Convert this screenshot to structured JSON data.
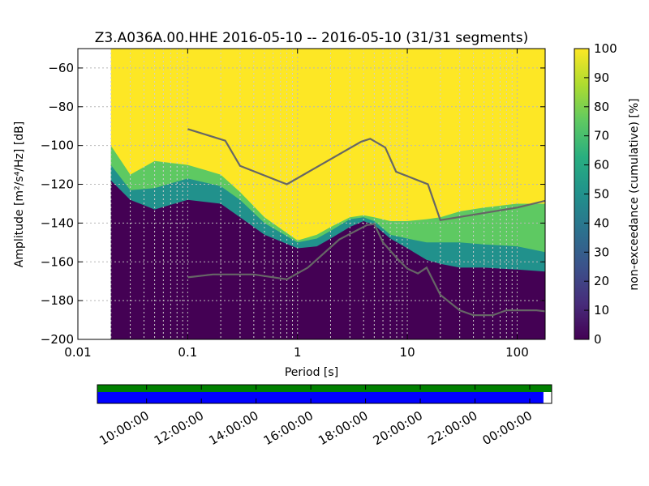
{
  "chart_data": [
    {
      "type": "heatmap",
      "title": "Z3.A036A.00.HHE   2016-05-10 -- 2016-05-10  (31/31 segments)",
      "xlabel": "Period [s]",
      "ylabel": "Amplitude [m²/s⁴/Hz] [dB]",
      "x_scale": "log",
      "xlim": [
        0.01,
        180
      ],
      "ylim": [
        -200,
        -50
      ],
      "grid": true,
      "x_ticks": [
        0.01,
        0.1,
        1,
        10,
        100
      ],
      "x_tick_labels": [
        "0.01",
        "0.1",
        "1",
        "10",
        "100"
      ],
      "y_ticks": [
        -60,
        -80,
        -100,
        -120,
        -140,
        -160,
        -180,
        -200
      ],
      "y_tick_labels": [
        "−60",
        "−80",
        "−100",
        "−120",
        "−140",
        "−160",
        "−180",
        "−200"
      ],
      "data_start_period": 0.02,
      "colorbar": {
        "label": "non-exceedance (cumulative) [%]",
        "range": [
          0,
          100
        ],
        "ticks": [
          0,
          10,
          20,
          30,
          40,
          50,
          60,
          70,
          80,
          90,
          100
        ],
        "tick_labels": [
          "0",
          "10",
          "20",
          "30",
          "40",
          "50",
          "60",
          "70",
          "80",
          "90",
          "100"
        ],
        "colors": [
          "#440154",
          "#472d7b",
          "#3b528b",
          "#2c728e",
          "#21918c",
          "#28ae80",
          "#5ec962",
          "#addc30",
          "#fde725"
        ]
      },
      "cumulative_bands": {
        "period": [
          0.02,
          0.03,
          0.05,
          0.1,
          0.2,
          0.3,
          0.5,
          1,
          1.5,
          2,
          3,
          4,
          5,
          7,
          10,
          15,
          20,
          30,
          50,
          100,
          180
        ],
        "pct_10": [
          -118,
          -128,
          -133,
          -128,
          -130,
          -137,
          -146,
          -153,
          -152,
          -148,
          -142,
          -139,
          -141,
          -148,
          -153,
          -159,
          -161,
          -163,
          -163,
          -164,
          -165
        ],
        "pct_50": [
          -110,
          -123,
          -122,
          -117,
          -121,
          -128,
          -140,
          -150,
          -148,
          -144,
          -138,
          -137,
          -139,
          -146,
          -148,
          -150,
          -150,
          -150,
          -151,
          -152,
          -155
        ],
        "pct_90": [
          -100,
          -115,
          -108,
          -110,
          -115,
          -124,
          -137,
          -149,
          -146,
          -142,
          -137,
          -136,
          -137,
          -139,
          -139,
          -138,
          -137,
          -134,
          -132,
          -130,
          -130
        ]
      },
      "series": [
        {
          "x": [
            0.1,
            0.22,
            0.3,
            0.8,
            3.8,
            4.6,
            6.3,
            7.9,
            15.4,
            20,
            100,
            180
          ],
          "values": [
            -91.5,
            -97.5,
            -110.5,
            -120,
            -98,
            -96.5,
            -101,
            -113.5,
            -120,
            -138.5,
            -132,
            -128.5
          ]
        },
        {
          "x": [
            0.1,
            0.17,
            0.4,
            0.8,
            1.24,
            2.4,
            4.3,
            5,
            6,
            8,
            10,
            12.5,
            15,
            20,
            30,
            40,
            60,
            80,
            100,
            150,
            180
          ],
          "values": [
            -168,
            -166.5,
            -166.5,
            -169,
            -163,
            -148.5,
            -141,
            -140.5,
            -150,
            -158,
            -163.5,
            -166,
            -163,
            -177,
            -185,
            -187.5,
            -187.5,
            -185,
            -185,
            -185,
            -185.5
          ]
        }
      ]
    },
    {
      "type": "timeline",
      "time_tick_labels": [
        "10:00:00",
        "12:00:00",
        "14:00:00",
        "16:00:00",
        "18:00:00",
        "20:00:00",
        "22:00:00",
        "00:00:00"
      ],
      "range_hours": [
        8.2,
        24.8
      ],
      "data_available_hours": [
        8.2,
        24.8
      ],
      "segments_hours": [
        8.2,
        24.5
      ],
      "data_color": "#008000",
      "segment_color": "#0000ff"
    }
  ]
}
